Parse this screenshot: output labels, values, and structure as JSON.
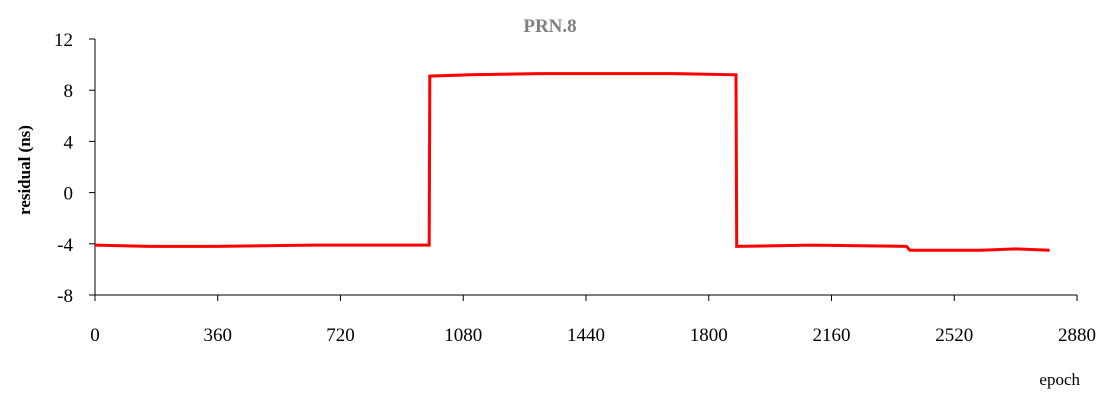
{
  "chart_data": {
    "type": "line",
    "title": "PRN.8",
    "xlabel": "epoch",
    "ylabel": "residual (ns)",
    "xlim": [
      0,
      2880
    ],
    "ylim": [
      -8,
      12
    ],
    "x_ticks": [
      "0",
      "360",
      "720",
      "1080",
      "1440",
      "1800",
      "2160",
      "2520",
      "2880"
    ],
    "y_ticks": [
      "12",
      "8",
      "4",
      "0",
      "-4",
      "-8"
    ],
    "grid": false,
    "series": [
      {
        "color": "#ff0000",
        "x": [
          0,
          160,
          360,
          640,
          980,
          982,
          1100,
          1300,
          1500,
          1700,
          1880,
          1882,
          2100,
          2380,
          2390,
          2600,
          2700,
          2800
        ],
        "y": [
          -4.1,
          -4.2,
          -4.2,
          -4.1,
          -4.1,
          9.1,
          9.2,
          9.3,
          9.3,
          9.3,
          9.2,
          -4.2,
          -4.1,
          -4.2,
          -4.5,
          -4.5,
          -4.4,
          -4.5
        ]
      }
    ]
  }
}
